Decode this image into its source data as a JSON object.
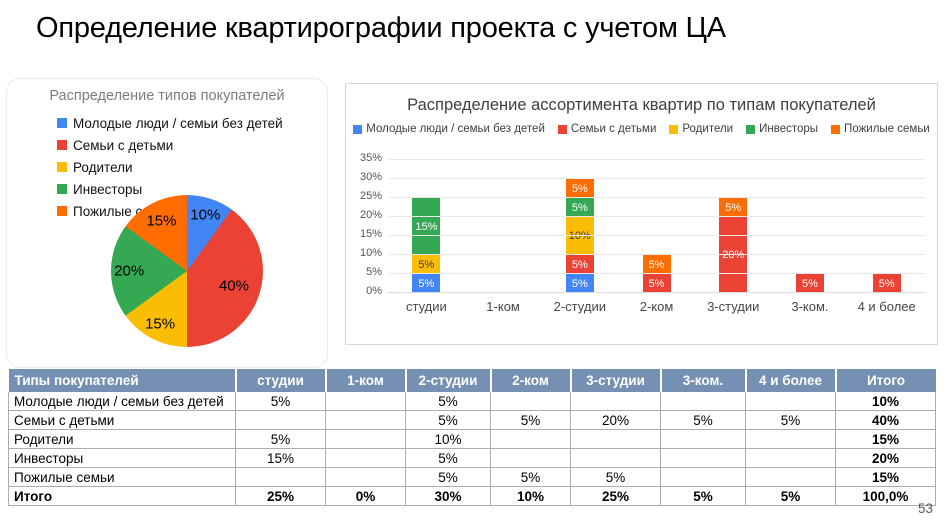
{
  "slide": {
    "title": "Определение квартирографии проекта с учетом ЦА",
    "page_number": "53"
  },
  "colors": {
    "blue": "#4285F4",
    "red": "#EA4335",
    "yellow": "#FBBC04",
    "green": "#34A853",
    "orange": "#FF6D01",
    "table_header_bg": "#7690B3"
  },
  "chart_data": [
    {
      "type": "pie",
      "title": "Распределение типов покупателей",
      "legend_position": "top-left-vertical",
      "slices": [
        {
          "label": "Молодые люди / семьи без детей",
          "value": 10,
          "color": "#4285F4",
          "data_label": "10%"
        },
        {
          "label": "Семьи с детьми",
          "value": 40,
          "color": "#EA4335",
          "data_label": "40%"
        },
        {
          "label": "Родители",
          "value": 15,
          "color": "#FBBC04",
          "data_label": "15%"
        },
        {
          "label": "Инвесторы",
          "value": 20,
          "color": "#34A853",
          "data_label": "20%"
        },
        {
          "label": "Пожилые семьи",
          "value": 15,
          "color": "#FF6D01",
          "data_label": "15%"
        }
      ]
    },
    {
      "type": "bar",
      "stacked": true,
      "title": "Распределение ассортимента квартир по типам покупателей",
      "legend_position": "top",
      "grid": true,
      "ylim": [
        0,
        35
      ],
      "ytick_labels": [
        "0%",
        "5%",
        "10%",
        "15%",
        "20%",
        "25%",
        "30%",
        "35%"
      ],
      "categories": [
        "студии",
        "1-ком",
        "2-студии",
        "2-ком",
        "3-студии",
        "3-ком.",
        "4 и более"
      ],
      "series": [
        {
          "name": "Молодые люди / семьи без детей",
          "color": "#4285F4",
          "values": [
            5,
            0,
            5,
            0,
            0,
            0,
            0
          ]
        },
        {
          "name": "Семьи с детьми",
          "color": "#EA4335",
          "values": [
            0,
            0,
            5,
            5,
            20,
            5,
            5
          ]
        },
        {
          "name": "Родители",
          "color": "#FBBC04",
          "values": [
            5,
            0,
            10,
            0,
            0,
            0,
            0
          ]
        },
        {
          "name": "Инвесторы",
          "color": "#34A853",
          "values": [
            15,
            0,
            5,
            0,
            0,
            0,
            0
          ]
        },
        {
          "name": "Пожилые семьи",
          "color": "#FF6D01",
          "values": [
            0,
            0,
            5,
            5,
            5,
            0,
            0
          ]
        }
      ]
    }
  ],
  "table": {
    "columns": [
      "Типы покупателей",
      "студии",
      "1-ком",
      "2-студии",
      "2-ком",
      "3-студии",
      "3-ком.",
      "4 и более",
      "Итого"
    ],
    "rows": [
      [
        "Молодые люди / семьи без детей",
        "5%",
        "",
        "5%",
        "",
        "",
        "",
        "",
        "10%"
      ],
      [
        "Семьи с детьми",
        "",
        "",
        "5%",
        "5%",
        "20%",
        "5%",
        "5%",
        "40%"
      ],
      [
        "Родители",
        "5%",
        "",
        "10%",
        "",
        "",
        "",
        "",
        "15%"
      ],
      [
        "Инвесторы",
        "15%",
        "",
        "5%",
        "",
        "",
        "",
        "",
        "20%"
      ],
      [
        "Пожилые семьи",
        "",
        "",
        "5%",
        "5%",
        "5%",
        "",
        "",
        "15%"
      ],
      [
        "Итого",
        "25%",
        "0%",
        "30%",
        "10%",
        "25%",
        "5%",
        "5%",
        "100,0%"
      ]
    ]
  }
}
